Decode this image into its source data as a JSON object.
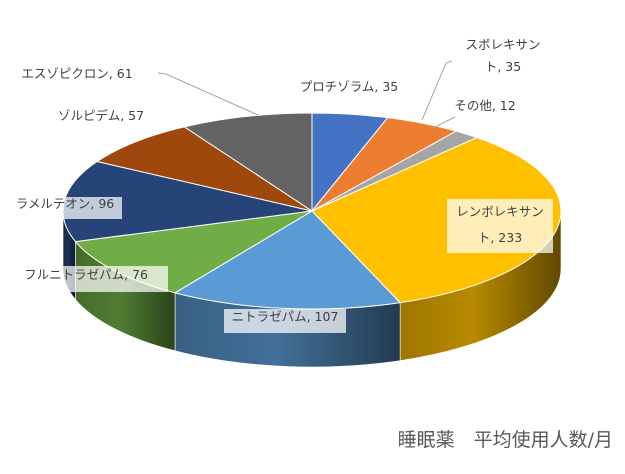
{
  "chart_data": {
    "type": "pie",
    "style": "3d",
    "title": "睡眠薬　平均使用人数/月",
    "slices": [
      {
        "name": "プロチゾラム",
        "value": 35,
        "color": "#4472C4"
      },
      {
        "name": "スボレキサント",
        "value": 35,
        "color": "#ED7D31"
      },
      {
        "name": "その他",
        "value": 12,
        "color": "#A5A5A5"
      },
      {
        "name": "レンボレキサント",
        "value": 233,
        "color": "#FFC000"
      },
      {
        "name": "ニトラゼパム",
        "value": 107,
        "color": "#5B9BD5"
      },
      {
        "name": "フルニトラゼパム",
        "value": 76,
        "color": "#70AD47"
      },
      {
        "name": "ラメルテオン",
        "value": 96,
        "color": "#264478"
      },
      {
        "name": "ゾルピデム",
        "value": 57,
        "color": "#9E480E"
      },
      {
        "name": "エスゾピクロン",
        "value": 61,
        "color": "#636363"
      }
    ],
    "data_labels": [
      {
        "lines": [
          "プロチゾラム, 35"
        ]
      },
      {
        "lines": [
          "スボレキサン",
          "ト, 35"
        ]
      },
      {
        "lines": [
          "その他, 12"
        ]
      },
      {
        "lines": [
          "レンボレキサン",
          "ト, 233"
        ]
      },
      {
        "lines": [
          "ニトラゼパム, 107"
        ]
      },
      {
        "lines": [
          "フルニトラゼパム, 76"
        ]
      },
      {
        "lines": [
          "ラメルテオン, 96"
        ]
      },
      {
        "lines": [
          "ゾルピデム, 57"
        ]
      },
      {
        "lines": [
          "エスゾピクロン, 61"
        ]
      }
    ]
  }
}
